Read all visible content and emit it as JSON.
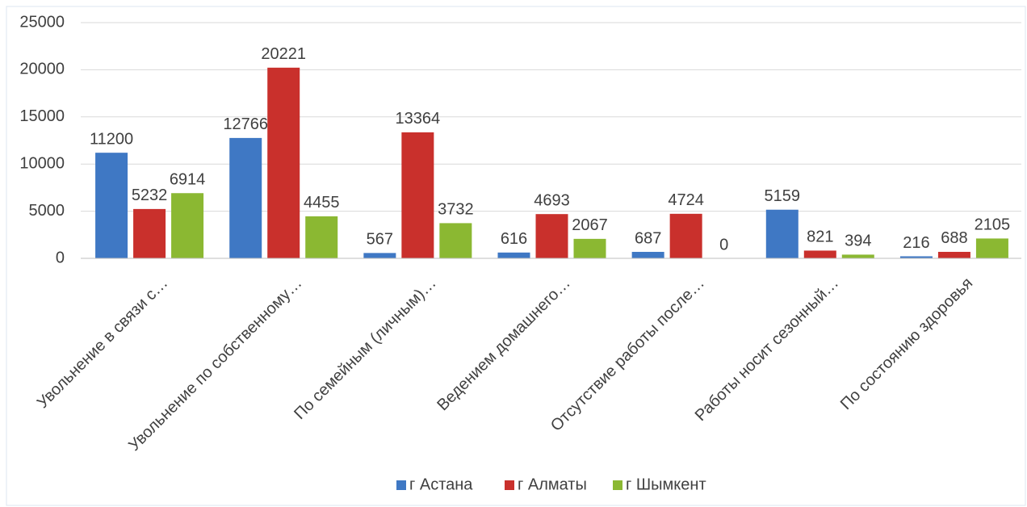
{
  "chart_data": {
    "type": "bar",
    "categories": [
      "Увольнение в связи с…",
      "Увольнение по собственному…",
      "По семейным (личным)…",
      "Ведением домашнего…",
      "Отсутствие работы после…",
      "Работы носит сезонный…",
      "По состоянию здоровья"
    ],
    "series": [
      {
        "name": "г Астана",
        "color": "#3f78c4",
        "values": [
          11200,
          12766,
          567,
          616,
          687,
          5159,
          216
        ]
      },
      {
        "name": "г Алматы",
        "color": "#c9302c",
        "values": [
          5232,
          20221,
          13364,
          4693,
          4724,
          821,
          688
        ]
      },
      {
        "name": "г Шымкент",
        "color": "#8bb832",
        "values": [
          6914,
          4455,
          3732,
          2067,
          0,
          394,
          2105
        ]
      }
    ],
    "ylim": [
      0,
      25000
    ],
    "yticks": [
      0,
      5000,
      10000,
      15000,
      20000,
      25000
    ],
    "grid": true,
    "legend": "bottom"
  }
}
